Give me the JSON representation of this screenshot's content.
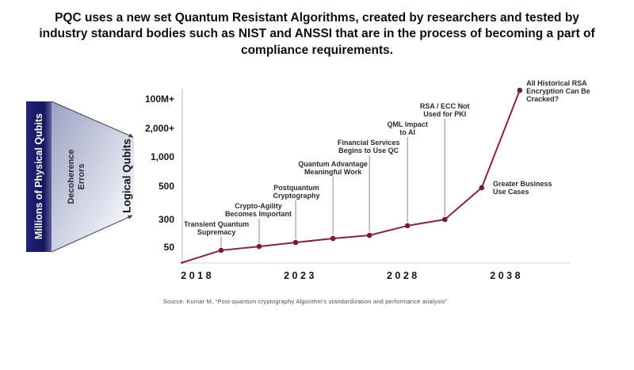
{
  "title": "PQC uses a new set Quantum Resistant Algorithms, created by researchers and tested by industry standard bodies such as NIST and ANSSI that are in the process of becoming a part of compliance requirements.",
  "left_graphic": {
    "bar_label": "Millions of Physical Qubits",
    "bar_color": "#15155f",
    "funnel_label_line1": "Decoherence",
    "funnel_label_line2": "Errors",
    "funnel_gradient_start": "#9ba1c3",
    "funnel_gradient_end": "#ffffff"
  },
  "chart_data": {
    "type": "line",
    "ylabel": "Logical Qubits",
    "line_color": "#8b2433",
    "point_color": "#7a1d2a",
    "leader_color": "#a0808a",
    "y_axis_color": "#c3b2b6",
    "x_axis_color": "#e6ccd0",
    "grid": false,
    "y_ticks": [
      {
        "label": "100M+",
        "fy": 0.059
      },
      {
        "label": "2,000+",
        "fy": 0.227
      },
      {
        "label": "1,000",
        "fy": 0.391
      },
      {
        "label": "500",
        "fy": 0.559
      },
      {
        "label": "300",
        "fy": 0.75
      },
      {
        "label": "50",
        "fy": 0.909
      }
    ],
    "x_ticks": [
      {
        "label": "2018",
        "fx": 0.035
      },
      {
        "label": "2023",
        "fx": 0.3
      },
      {
        "label": "2028",
        "fx": 0.565
      },
      {
        "label": "2038",
        "fx": 0.831
      }
    ],
    "start_point": {
      "fx": -0.004,
      "fy": 1.0
    },
    "milestones": [
      {
        "label_lines": [
          "Transient Quantum",
          "Supremacy"
        ],
        "approx_logical_qubits": "~50",
        "fx": 0.1,
        "fy": 0.927,
        "label_fx": 0.088,
        "label_fy": 0.755,
        "pos": "above"
      },
      {
        "label_lines": [
          "Crypto-Agility",
          "Becomes Important"
        ],
        "approx_logical_qubits": "~70",
        "fx": 0.198,
        "fy": 0.905,
        "label_fx": 0.196,
        "label_fy": 0.65,
        "pos": "above"
      },
      {
        "label_lines": [
          "Postquantum",
          "Cryptography"
        ],
        "approx_logical_qubits": "~90",
        "fx": 0.292,
        "fy": 0.882,
        "label_fx": 0.294,
        "label_fy": 0.545,
        "pos": "above"
      },
      {
        "label_lines": [
          "Quantum Advantage",
          "Meaningful Work"
        ],
        "approx_logical_qubits": "~120",
        "fx": 0.388,
        "fy": 0.859,
        "label_fx": 0.388,
        "label_fy": 0.409,
        "pos": "above"
      },
      {
        "label_lines": [
          "Financial Services",
          "Begins to Use QC"
        ],
        "approx_logical_qubits": "~150",
        "fx": 0.482,
        "fy": 0.841,
        "label_fx": 0.48,
        "label_fy": 0.286,
        "pos": "above"
      },
      {
        "label_lines": [
          "QML Impact",
          "to AI"
        ],
        "approx_logical_qubits": "~220",
        "fx": 0.58,
        "fy": 0.786,
        "label_fx": 0.58,
        "label_fy": 0.182,
        "pos": "above"
      },
      {
        "label_lines": [
          "RSA / ECC Not",
          "Used for PKI"
        ],
        "approx_logical_qubits": "~300",
        "fx": 0.676,
        "fy": 0.75,
        "label_fx": 0.676,
        "label_fy": 0.077,
        "pos": "above"
      },
      {
        "label_lines": [
          "Greater Business",
          "Use Cases"
        ],
        "approx_logical_qubits": "~500",
        "fx": 0.771,
        "fy": 0.568,
        "label_fx": 0.8,
        "label_fy": 0.523,
        "pos": "right"
      },
      {
        "label_lines": [
          "All Historical RSA",
          "Encryption Can Be",
          "Cracked?"
        ],
        "approx_logical_qubits": "100M+",
        "fx": 0.869,
        "fy": 0.009,
        "label_fx": 0.886,
        "label_fy": -0.055,
        "pos": "right"
      }
    ]
  },
  "source": "Source: Kumar M, “Post-quantum cryptography Algorithm's standardization and performance analysis”"
}
